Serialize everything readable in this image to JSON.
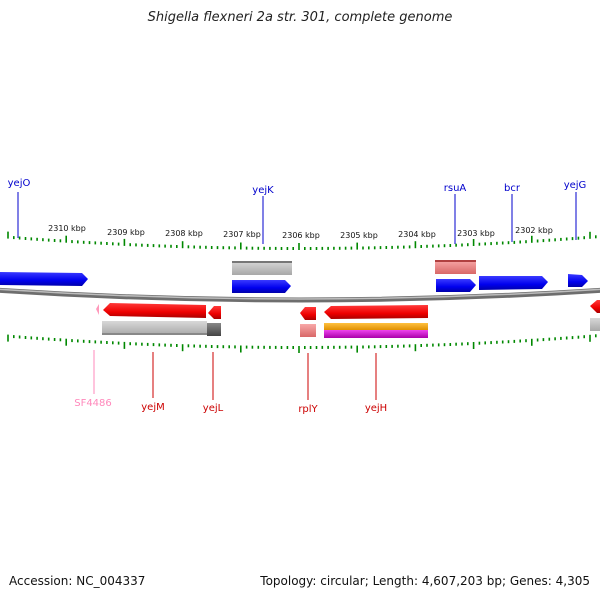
{
  "title": "Shigella flexneri 2a str. 301, complete genome",
  "footer": {
    "accession_label": "Accession:",
    "accession": "NC_004337",
    "topology_label": "Topology:",
    "topology": "circular",
    "length_label": "Length:",
    "length": "4,607,203 bp",
    "genes_label": "Genes:",
    "genes": "4,305"
  },
  "colors": {
    "forward_gene": "#0000ee",
    "reverse_gene": "#ee0000",
    "forward_label": "#0000cc",
    "reverse_label": "#cc0000",
    "pseudo_label": "#ff88bb",
    "ticks": "#008800",
    "backbone": "#888888"
  },
  "ruler": {
    "unit": "kbp",
    "labels": [
      "2310 kbp",
      "2309 kbp",
      "2308 kbp",
      "2307 kbp",
      "2306 kbp",
      "2305 kbp",
      "2304 kbp",
      "2303 kbp",
      "2302 kbp"
    ]
  },
  "labels_top": [
    {
      "name": "yejO",
      "color": "#0000cc"
    },
    {
      "name": "yejK",
      "color": "#0000cc"
    },
    {
      "name": "rsuA",
      "color": "#0000cc"
    },
    {
      "name": "bcr",
      "color": "#0000cc"
    },
    {
      "name": "yejG",
      "color": "#0000cc"
    }
  ],
  "labels_bottom": [
    {
      "name": "SF4486",
      "color": "#ff88bb"
    },
    {
      "name": "yejM",
      "color": "#cc0000"
    },
    {
      "name": "yejL",
      "color": "#cc0000"
    },
    {
      "name": "rplY",
      "color": "#cc0000"
    },
    {
      "name": "yejH",
      "color": "#cc0000"
    }
  ]
}
